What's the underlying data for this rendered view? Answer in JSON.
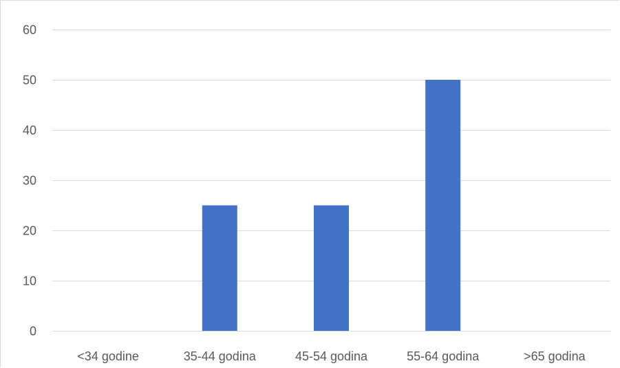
{
  "chart_data": {
    "type": "bar",
    "title": "",
    "xlabel": "",
    "ylabel": "",
    "categories": [
      "<34 godine",
      "35-44 godina",
      "45-54 godina",
      "55-64 godina",
      ">65 godina"
    ],
    "values": [
      0,
      25,
      25,
      50,
      0
    ],
    "ylim": [
      0,
      60
    ],
    "yticks": [
      "0",
      "10",
      "20",
      "30",
      "40",
      "50",
      "60"
    ],
    "grid": true,
    "legend": "none",
    "colors": {
      "bar": "#4472c4",
      "grid": "#d9d9d9",
      "tick_text": "#595959"
    }
  }
}
